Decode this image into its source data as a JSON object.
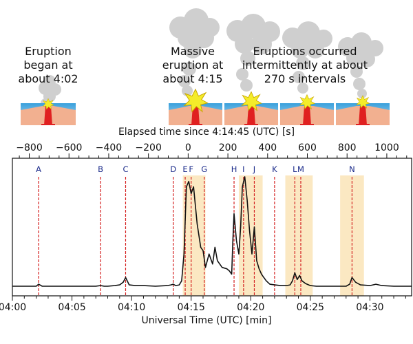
{
  "illustrations": {
    "captions": [
      {
        "lines": [
          "Eruption",
          "began at",
          "about 4:02"
        ]
      },
      {
        "lines": [
          "Massive",
          "eruption at",
          "about 4:15"
        ]
      },
      {
        "lines": [
          "Eruptions occurred",
          "intermittently at about",
          "270 s intervals"
        ]
      }
    ]
  },
  "chart_data": {
    "type": "line",
    "title": "",
    "xlabel": "Universal Time (UTC) [min]",
    "x2label": "Elapsed time since 4:14:45 (UTC) [s]",
    "ylabel": "",
    "xlim": [
      0,
      33.5
    ],
    "x2_ticks": [
      "−800",
      "−600",
      "−400",
      "−200",
      "0",
      "200",
      "400",
      "600",
      "800",
      "1000"
    ],
    "x_ticks": [
      "04:00",
      "04:05",
      "04:10",
      "04:15",
      "04:20",
      "04:25",
      "04:30"
    ],
    "colors": {
      "line": "#111111",
      "event": "#d42020",
      "shade": "#fbe8c2",
      "event_label": "#1a2a8a"
    },
    "shaded_intervals_min": [
      [
        14.3,
        16.2
      ],
      [
        19.0,
        21.0
      ],
      [
        22.9,
        25.2
      ],
      [
        27.5,
        29.5
      ]
    ],
    "events": [
      {
        "label": "A",
        "time_min": 2.2
      },
      {
        "label": "B",
        "time_min": 7.4
      },
      {
        "label": "C",
        "time_min": 9.5
      },
      {
        "label": "D",
        "time_min": 13.5
      },
      {
        "label": "E",
        "time_min": 14.5
      },
      {
        "label": "F",
        "time_min": 15.0
      },
      {
        "label": "G",
        "time_min": 16.1
      },
      {
        "label": "H",
        "time_min": 18.6
      },
      {
        "label": "I",
        "time_min": 19.4
      },
      {
        "label": "J",
        "time_min": 20.3
      },
      {
        "label": "K",
        "time_min": 22.0
      },
      {
        "label": "L",
        "time_min": 23.7
      },
      {
        "label": "M",
        "time_min": 24.2
      },
      {
        "label": "N",
        "time_min": 28.5
      }
    ],
    "series": [
      {
        "x": [
          0,
          1,
          2,
          2.2,
          2.5,
          3,
          4,
          5,
          6,
          7,
          7.4,
          7.7,
          8,
          8.6,
          9.0,
          9.3,
          9.5,
          9.8,
          10.3,
          11,
          12,
          13,
          13.3,
          13.5,
          13.7,
          14.0,
          14.2,
          14.4,
          14.6,
          14.8,
          15.0,
          15.2,
          15.5,
          15.8,
          16.0,
          16.2,
          16.5,
          16.8,
          17.0,
          17.2,
          17.6,
          18.0,
          18.2,
          18.4,
          18.5,
          18.6,
          18.8,
          19.0,
          19.15,
          19.3,
          19.5,
          19.7,
          19.9,
          20.1,
          20.3,
          20.5,
          20.7,
          20.9,
          21.1,
          21.3,
          21.6,
          22.0,
          22.5,
          23.0,
          23.3,
          23.5,
          23.7,
          23.9,
          24.1,
          24.3,
          24.6,
          25.0,
          25.5,
          26,
          27,
          28,
          28.3,
          28.5,
          28.8,
          29.2,
          30,
          30.5,
          31,
          32,
          33.5
        ],
        "y": [
          2,
          2,
          2,
          5,
          2,
          2,
          2,
          2,
          2,
          2,
          3,
          2,
          2,
          3,
          4,
          8,
          15,
          4,
          3,
          3,
          2,
          3,
          4,
          5,
          3,
          4,
          10,
          50,
          150,
          158,
          140,
          150,
          95,
          60,
          55,
          30,
          50,
          35,
          60,
          40,
          30,
          28,
          25,
          20,
          70,
          110,
          70,
          50,
          90,
          150,
          165,
          130,
          85,
          50,
          90,
          40,
          28,
          20,
          15,
          10,
          5,
          4,
          3,
          3,
          4,
          10,
          22,
          12,
          18,
          10,
          6,
          3,
          2,
          2,
          2,
          2,
          5,
          15,
          8,
          4,
          3,
          5,
          3,
          2,
          2
        ]
      }
    ],
    "grid": false,
    "legend": "none"
  }
}
